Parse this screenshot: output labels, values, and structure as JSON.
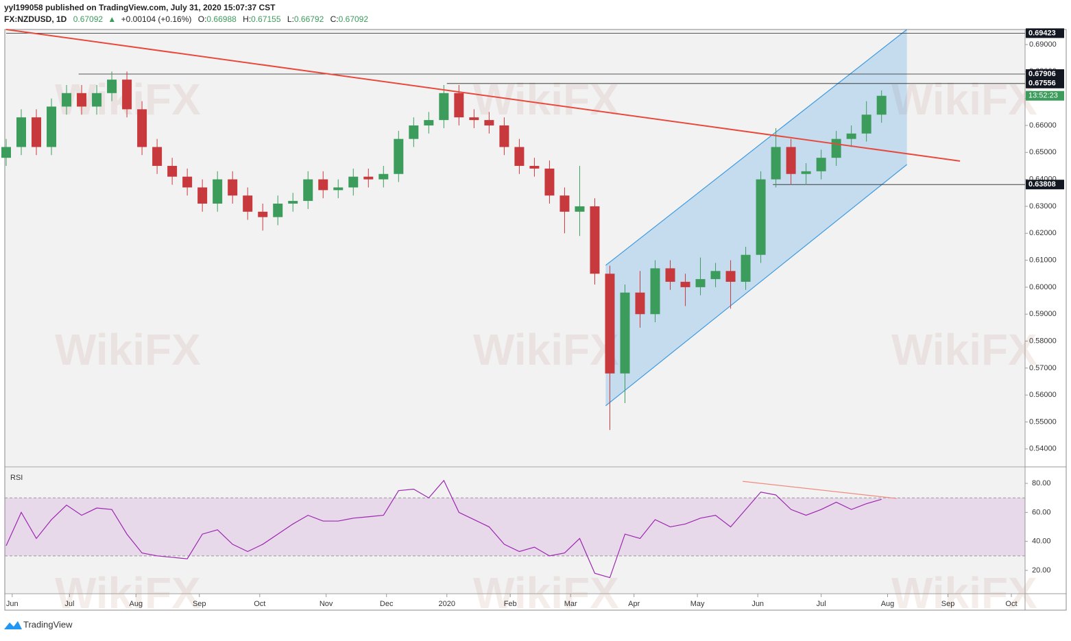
{
  "header": {
    "publisher": "yyl199058 published on TradingView.com, July 31, 2020 15:07:37 CST",
    "symbol": "FX:NZDUSD, 1D",
    "last": "0.67092",
    "arrow": "▲",
    "change": "+0.00104 (+0.16%)",
    "open_label": "O:",
    "open": "0.66988",
    "high_label": "H:",
    "high": "0.67155",
    "low_label": "L:",
    "low": "0.66792",
    "close_label": "C:",
    "close": "0.67092"
  },
  "watermark": "WikiFX",
  "footer": "TradingView",
  "chart_data": [
    {
      "type": "candlestick",
      "x": [
        0,
        5,
        10,
        15,
        20,
        25,
        30,
        35,
        40,
        45,
        50,
        55,
        60,
        65,
        70,
        75,
        80,
        85,
        90,
        95,
        100,
        105,
        110,
        115,
        120,
        125,
        130,
        135,
        140,
        145,
        150,
        155,
        160,
        165,
        170,
        175,
        180,
        185,
        190,
        195,
        200,
        205,
        210,
        215,
        220,
        225,
        230,
        235,
        240,
        245,
        250,
        255,
        260,
        265,
        270,
        275,
        280,
        285,
        290
      ],
      "open": [
        0.648,
        0.652,
        0.663,
        0.652,
        0.667,
        0.672,
        0.667,
        0.672,
        0.677,
        0.666,
        0.652,
        0.645,
        0.641,
        0.637,
        0.631,
        0.64,
        0.634,
        0.628,
        0.626,
        0.631,
        0.632,
        0.64,
        0.636,
        0.637,
        0.641,
        0.64,
        0.642,
        0.655,
        0.66,
        0.662,
        0.672,
        0.663,
        0.662,
        0.66,
        0.652,
        0.645,
        0.644,
        0.634,
        0.628,
        0.63,
        0.605,
        0.568,
        0.598,
        0.59,
        0.607,
        0.602,
        0.6,
        0.603,
        0.606,
        0.602,
        0.612,
        0.64,
        0.652,
        0.642,
        0.643,
        0.648,
        0.655,
        0.657,
        0.664
      ],
      "high": [
        0.655,
        0.666,
        0.666,
        0.67,
        0.675,
        0.675,
        0.675,
        0.68,
        0.68,
        0.669,
        0.655,
        0.648,
        0.644,
        0.64,
        0.643,
        0.643,
        0.637,
        0.631,
        0.634,
        0.635,
        0.643,
        0.643,
        0.64,
        0.644,
        0.644,
        0.645,
        0.658,
        0.663,
        0.665,
        0.675,
        0.675,
        0.666,
        0.665,
        0.663,
        0.655,
        0.648,
        0.647,
        0.637,
        0.645,
        0.633,
        0.608,
        0.601,
        0.606,
        0.61,
        0.61,
        0.605,
        0.611,
        0.609,
        0.61,
        0.615,
        0.643,
        0.659,
        0.655,
        0.646,
        0.651,
        0.658,
        0.66,
        0.669,
        0.673
      ],
      "low": [
        0.645,
        0.649,
        0.649,
        0.649,
        0.664,
        0.664,
        0.664,
        0.669,
        0.663,
        0.649,
        0.642,
        0.638,
        0.634,
        0.628,
        0.628,
        0.631,
        0.625,
        0.621,
        0.623,
        0.628,
        0.629,
        0.633,
        0.633,
        0.634,
        0.637,
        0.637,
        0.639,
        0.652,
        0.657,
        0.659,
        0.66,
        0.659,
        0.657,
        0.649,
        0.642,
        0.641,
        0.631,
        0.62,
        0.619,
        0.601,
        0.547,
        0.557,
        0.585,
        0.587,
        0.599,
        0.593,
        0.597,
        0.6,
        0.592,
        0.599,
        0.609,
        0.637,
        0.638,
        0.638,
        0.64,
        0.645,
        0.652,
        0.654,
        0.661
      ],
      "close": [
        0.652,
        0.663,
        0.652,
        0.667,
        0.672,
        0.667,
        0.672,
        0.677,
        0.666,
        0.652,
        0.645,
        0.641,
        0.637,
        0.631,
        0.64,
        0.634,
        0.628,
        0.626,
        0.631,
        0.632,
        0.64,
        0.636,
        0.637,
        0.641,
        0.64,
        0.642,
        0.655,
        0.66,
        0.662,
        0.672,
        0.663,
        0.662,
        0.66,
        0.652,
        0.645,
        0.644,
        0.634,
        0.628,
        0.63,
        0.605,
        0.568,
        0.598,
        0.59,
        0.607,
        0.602,
        0.6,
        0.603,
        0.606,
        0.602,
        0.612,
        0.64,
        0.652,
        0.642,
        0.643,
        0.648,
        0.655,
        0.657,
        0.664,
        0.671
      ],
      "up_color": "#3c9c5c",
      "down_color": "#c8393d",
      "xlim": [
        0,
        338
      ],
      "ylim": [
        0.5336,
        0.6956
      ],
      "xticks": [
        {
          "value": 2,
          "label": "Jun"
        },
        {
          "value": 21,
          "label": "Jul"
        },
        {
          "value": 43,
          "label": "Aug"
        },
        {
          "value": 64,
          "label": "Sep"
        },
        {
          "value": 84,
          "label": "Oct"
        },
        {
          "value": 106,
          "label": "Nov"
        },
        {
          "value": 126,
          "label": "Dec"
        },
        {
          "value": 146,
          "label": "2020"
        },
        {
          "value": 167,
          "label": "Feb"
        },
        {
          "value": 187,
          "label": "Mar"
        },
        {
          "value": 208,
          "label": "Apr"
        },
        {
          "value": 229,
          "label": "May"
        },
        {
          "value": 249,
          "label": "Jun"
        },
        {
          "value": 270,
          "label": "Jul"
        },
        {
          "value": 292,
          "label": "Aug"
        },
        {
          "value": 312,
          "label": "Sep"
        },
        {
          "value": 333,
          "label": "Oct"
        }
      ],
      "yticks": [
        {
          "value": 0.54,
          "label": "0.54000"
        },
        {
          "value": 0.55,
          "label": "0.55000"
        },
        {
          "value": 0.56,
          "label": "0.56000"
        },
        {
          "value": 0.57,
          "label": "0.57000"
        },
        {
          "value": 0.58,
          "label": "0.58000"
        },
        {
          "value": 0.59,
          "label": "0.59000"
        },
        {
          "value": 0.6,
          "label": "0.60000"
        },
        {
          "value": 0.61,
          "label": "0.61000"
        },
        {
          "value": 0.62,
          "label": "0.62000"
        },
        {
          "value": 0.63,
          "label": "0.63000"
        },
        {
          "value": 0.64,
          "label": "0.64000"
        },
        {
          "value": 0.65,
          "label": "0.65000"
        },
        {
          "value": 0.66,
          "label": "0.66000"
        },
        {
          "value": 0.67,
          "label": "0.67000"
        },
        {
          "value": 0.68,
          "label": "0.68000"
        },
        {
          "value": 0.69,
          "label": "0.69000"
        }
      ],
      "levels": [
        {
          "value": 0.69423,
          "start": 0
        },
        {
          "value": 0.67906,
          "start": 24
        },
        {
          "value": 0.67556,
          "start": 146
        },
        {
          "value": 0.63808,
          "start": 254
        }
      ],
      "timer": "13:52:23",
      "trendline": {
        "x": [
          0,
          316
        ],
        "y": [
          0.6956,
          0.6468
        ],
        "color": "#e8493c"
      },
      "channel": {
        "x": [
          198.6,
          298.4
        ],
        "upper": [
          0.6081,
          0.6956
        ],
        "lower": [
          0.556,
          0.6455
        ],
        "color": "#3d9ae0"
      }
    },
    {
      "type": "line",
      "title": "RSI",
      "color": "#9c27b0",
      "x": [
        0,
        5,
        10,
        15,
        20,
        25,
        30,
        35,
        40,
        45,
        50,
        55,
        60,
        65,
        70,
        75,
        80,
        85,
        90,
        95,
        100,
        105,
        110,
        115,
        120,
        125,
        130,
        135,
        140,
        145,
        150,
        155,
        160,
        165,
        170,
        175,
        180,
        185,
        190,
        195,
        200,
        205,
        210,
        215,
        220,
        225,
        230,
        235,
        240,
        245,
        250,
        255,
        260,
        265,
        270,
        275,
        280,
        285,
        290
      ],
      "values": [
        37,
        60,
        42,
        55,
        65,
        58,
        63,
        62,
        45,
        32,
        30,
        29,
        28,
        45,
        48,
        38,
        33,
        38,
        45,
        52,
        58,
        54,
        54,
        56,
        57,
        58,
        75,
        76,
        70,
        82,
        60,
        55,
        50,
        38,
        33,
        36,
        30,
        32,
        42,
        18,
        15,
        45,
        42,
        55,
        50,
        52,
        56,
        58,
        50,
        62,
        74,
        72,
        62,
        58,
        62,
        67,
        62,
        66,
        69
      ],
      "band": [
        30,
        70
      ],
      "ylim": [
        4.4,
        90.9
      ],
      "yticks": [
        {
          "value": 20,
          "label": "20.00"
        },
        {
          "value": 40,
          "label": "40.00"
        },
        {
          "value": 60,
          "label": "60.00"
        },
        {
          "value": 80,
          "label": "80.00"
        }
      ],
      "trendline": {
        "x": [
          244,
          295
        ],
        "y": [
          81.4,
          69.6
        ],
        "color": "#f08a80"
      }
    }
  ]
}
